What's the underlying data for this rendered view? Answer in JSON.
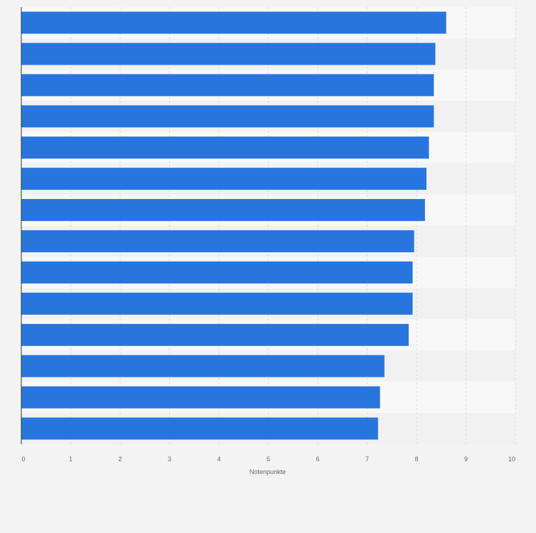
{
  "chart_data": {
    "type": "bar",
    "orientation": "horizontal",
    "categories": [
      "",
      "",
      "",
      "",
      "",
      "",
      "",
      "",
      "",
      "",
      "",
      "",
      "",
      ""
    ],
    "values": [
      8.6,
      8.38,
      8.35,
      8.35,
      8.25,
      8.2,
      8.17,
      7.95,
      7.92,
      7.92,
      7.84,
      7.35,
      7.26,
      7.22
    ],
    "xlabel": "Notenpunkte",
    "ylabel": "",
    "xlim": [
      0,
      10
    ],
    "xticks": [
      "0",
      "1",
      "2",
      "3",
      "4",
      "5",
      "6",
      "7",
      "8",
      "9",
      "10"
    ],
    "grid": true,
    "legend": "none",
    "colors": {
      "bar": "#2876dd",
      "background": "#f3f3f3",
      "band_light": "#f8f8f8",
      "band_dark": "#f1f1f1"
    }
  }
}
